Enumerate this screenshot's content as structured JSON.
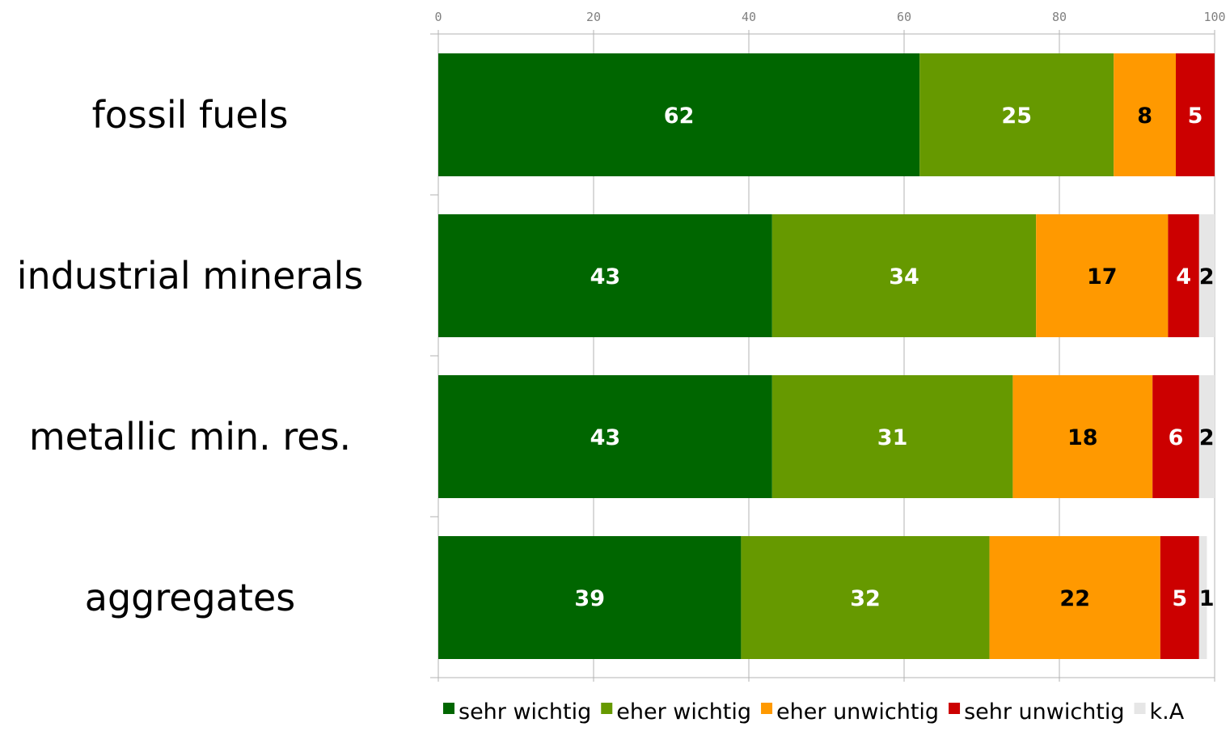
{
  "chart_data": {
    "type": "bar",
    "orientation": "horizontal",
    "stacked": true,
    "categories": [
      "fossil fuels",
      "industrial minerals",
      "metallic min. res.",
      "aggregates"
    ],
    "series": [
      {
        "name": "sehr wichtig",
        "color": "#006600",
        "values": [
          62,
          43,
          43,
          39
        ],
        "labels": [
          "62",
          "43",
          "43",
          "39"
        ],
        "label_color": "#ffffff"
      },
      {
        "name": "eher wichtig",
        "color": "#669900",
        "values": [
          25,
          34,
          31,
          32
        ],
        "labels": [
          "25",
          "34",
          "31",
          "32"
        ],
        "label_color": "#ffffff"
      },
      {
        "name": "eher unwichtig",
        "color": "#ff9900",
        "values": [
          8,
          17,
          18,
          22
        ],
        "labels": [
          "8",
          "17",
          "18",
          "22"
        ],
        "label_color": "#000000"
      },
      {
        "name": "sehr unwichtig",
        "color": "#cc0000",
        "values": [
          5,
          4,
          6,
          5
        ],
        "labels": [
          "5",
          "4",
          "6",
          "5"
        ],
        "label_color": "#ffffff"
      },
      {
        "name": "k.A",
        "color": "#e6e6e6",
        "values": [
          0,
          2,
          2,
          1
        ],
        "labels": [
          "",
          "2",
          "2",
          "1"
        ],
        "label_color": "#000000"
      }
    ],
    "xlim": [
      0,
      100
    ],
    "xticks": [
      "0",
      "20",
      "40",
      "60",
      "80",
      "100"
    ],
    "x_axis_position": "top",
    "grid": true,
    "legend_position": "bottom",
    "title": "",
    "xlabel": "",
    "ylabel": ""
  }
}
